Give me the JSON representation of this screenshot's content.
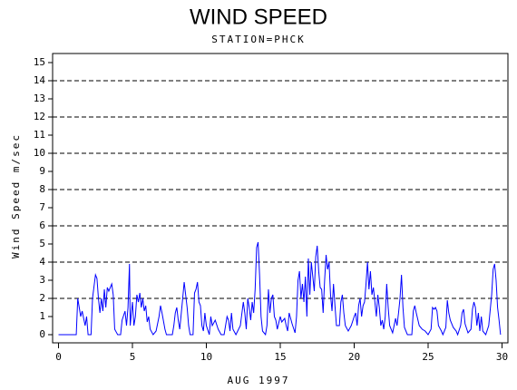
{
  "chart_data": {
    "type": "line",
    "title": "WIND SPEED",
    "subtitle": "STATION=PHCK",
    "x_label": "AUG 1997",
    "y_label": "Wind Speed m/sec",
    "xlim": [
      -0.4,
      30.4
    ],
    "xticks": [
      0,
      5,
      10,
      15,
      20,
      25,
      30
    ],
    "ylim": [
      -0.2,
      15.5
    ],
    "yticks": [
      0,
      1,
      2,
      3,
      4,
      5,
      6,
      7,
      8,
      9,
      10,
      11,
      12,
      13,
      14,
      15
    ],
    "ygrid": [
      2,
      4,
      6,
      8,
      10,
      12,
      14
    ],
    "grid_style": "dashed",
    "x": [
      0,
      1.2,
      1.3,
      1.5,
      1.6,
      1.8,
      1.9,
      2.0,
      2.2,
      2.3,
      2.5,
      2.6,
      2.7,
      2.8,
      2.9,
      3.0,
      3.1,
      3.2,
      3.3,
      3.4,
      3.6,
      3.7,
      3.8,
      4.0,
      4.2,
      4.3,
      4.5,
      4.6,
      4.7,
      4.8,
      4.85,
      5.0,
      5.1,
      5.2,
      5.3,
      5.4,
      5.5,
      5.6,
      5.7,
      5.8,
      5.9,
      6.0,
      6.1,
      6.2,
      6.4,
      6.6,
      6.8,
      6.9,
      7.0,
      7.2,
      7.3,
      7.7,
      7.8,
      7.9,
      8.0,
      8.1,
      8.2,
      8.4,
      8.5,
      8.6,
      8.7,
      8.8,
      8.9,
      9.1,
      9.2,
      9.3,
      9.4,
      9.5,
      9.6,
      9.7,
      9.8,
      9.9,
      10.0,
      10.2,
      10.3,
      10.4,
      10.6,
      10.8,
      11.0,
      11.2,
      11.4,
      11.5,
      11.6,
      11.7,
      11.8,
      12.0,
      12.3,
      12.5,
      12.6,
      12.7,
      12.8,
      12.9,
      13.0,
      13.1,
      13.2,
      13.3,
      13.4,
      13.5,
      13.6,
      13.7,
      13.8,
      14.0,
      14.1,
      14.2,
      14.3,
      14.4,
      14.5,
      14.6,
      14.7,
      14.8,
      15.0,
      15.1,
      15.3,
      15.4,
      15.5,
      15.6,
      15.8,
      16.0,
      16.1,
      16.2,
      16.3,
      16.4,
      16.5,
      16.6,
      16.7,
      16.8,
      16.9,
      17.0,
      17.1,
      17.2,
      17.3,
      17.4,
      17.5,
      17.6,
      17.7,
      17.8,
      17.9,
      18.0,
      18.1,
      18.2,
      18.3,
      18.4,
      18.5,
      18.6,
      18.7,
      18.8,
      19.0,
      19.1,
      19.2,
      19.3,
      19.4,
      19.6,
      19.8,
      20.0,
      20.1,
      20.2,
      20.3,
      20.4,
      20.5,
      20.6,
      20.7,
      20.8,
      20.9,
      21.0,
      21.1,
      21.2,
      21.3,
      21.4,
      21.5,
      21.6,
      21.7,
      21.8,
      21.9,
      22.0,
      22.1,
      22.2,
      22.3,
      22.4,
      22.6,
      22.8,
      22.9,
      23.0,
      23.1,
      23.2,
      23.3,
      23.4,
      23.6,
      23.9,
      24.0,
      24.1,
      24.2,
      24.4,
      24.6,
      24.8,
      25.0,
      25.2,
      25.3,
      25.4,
      25.5,
      25.6,
      25.7,
      25.9,
      26.0,
      26.2,
      26.3,
      26.4,
      26.5,
      26.7,
      26.9,
      27.0,
      27.2,
      27.3,
      27.4,
      27.5,
      27.7,
      27.9,
      28.0,
      28.1,
      28.2,
      28.3,
      28.4,
      28.5,
      28.6,
      28.7,
      28.9,
      29.1,
      29.3,
      29.4,
      29.5,
      29.6,
      29.7,
      29.8,
      29.9
    ],
    "series": [
      {
        "color": "#0000ff",
        "values": [
          0,
          0,
          2,
          1,
          1.3,
          0.5,
          1,
          0,
          0,
          2,
          3.3,
          3.1,
          2,
          1.2,
          2,
          1.3,
          2.5,
          1.5,
          2.6,
          2.4,
          2.8,
          2.2,
          0.3,
          0,
          0,
          0.8,
          1.3,
          0.5,
          1.5,
          3.9,
          0.5,
          1.8,
          0.5,
          1,
          2.2,
          1.8,
          2.3,
          1.5,
          2,
          1.3,
          1.6,
          0.7,
          1,
          0.3,
          0,
          0.2,
          1,
          1.6,
          1.2,
          0.3,
          0,
          0,
          0.5,
          1.2,
          1.5,
          0.8,
          0.3,
          2,
          2.9,
          2.2,
          1.5,
          0.5,
          0,
          0,
          2.3,
          2.5,
          2.9,
          1.8,
          1.6,
          0.5,
          0.2,
          1.2,
          0.5,
          0,
          1,
          0.5,
          0.8,
          0.3,
          0,
          0,
          1,
          0.8,
          0.2,
          1.2,
          0.3,
          0,
          0.5,
          1.8,
          1.2,
          0.3,
          2,
          1.5,
          0.8,
          1.8,
          1.2,
          2.5,
          4.8,
          5.1,
          3.3,
          1,
          0.2,
          0,
          0.5,
          2.5,
          1.2,
          2,
          2.2,
          1,
          0.8,
          0.3,
          1,
          0.7,
          0.9,
          0.5,
          0.2,
          1.2,
          0.6,
          0.1,
          1,
          3,
          3.5,
          2,
          2.8,
          1.8,
          3.2,
          1,
          4.2,
          2.2,
          4,
          3.2,
          2.4,
          4.3,
          4.9,
          3.5,
          2.6,
          2.5,
          1.2,
          3,
          4.4,
          3.6,
          4,
          2.2,
          1.3,
          2.8,
          1.6,
          0.5,
          0.5,
          1.8,
          2.2,
          1.2,
          0.5,
          0.2,
          0.5,
          1,
          1.2,
          0.5,
          1.6,
          2,
          1,
          1.6,
          1.8,
          2.8,
          4,
          2.5,
          3.5,
          2.2,
          2.6,
          1.8,
          1,
          2.2,
          1.5,
          0.5,
          0.8,
          0.3,
          1,
          2.8,
          1.5,
          0.5,
          0.1,
          0.9,
          0.5,
          1.2,
          2,
          3.3,
          1.5,
          0.4,
          0,
          0,
          1.3,
          1.6,
          1.2,
          0.5,
          0.3,
          0.2,
          0,
          0.3,
          1.5,
          1.4,
          1.5,
          1.3,
          0.5,
          0.2,
          0,
          0.4,
          1.9,
          1.2,
          0.8,
          0.4,
          0.2,
          0,
          0.5,
          1.2,
          1.4,
          0.6,
          0.1,
          0.3,
          1.4,
          1.8,
          1.5,
          0.5,
          1.2,
          0.2,
          1,
          0.2,
          0,
          0.5,
          2.2,
          3.6,
          3.9,
          3,
          1.5,
          0.8,
          0
        ]
      }
    ]
  }
}
